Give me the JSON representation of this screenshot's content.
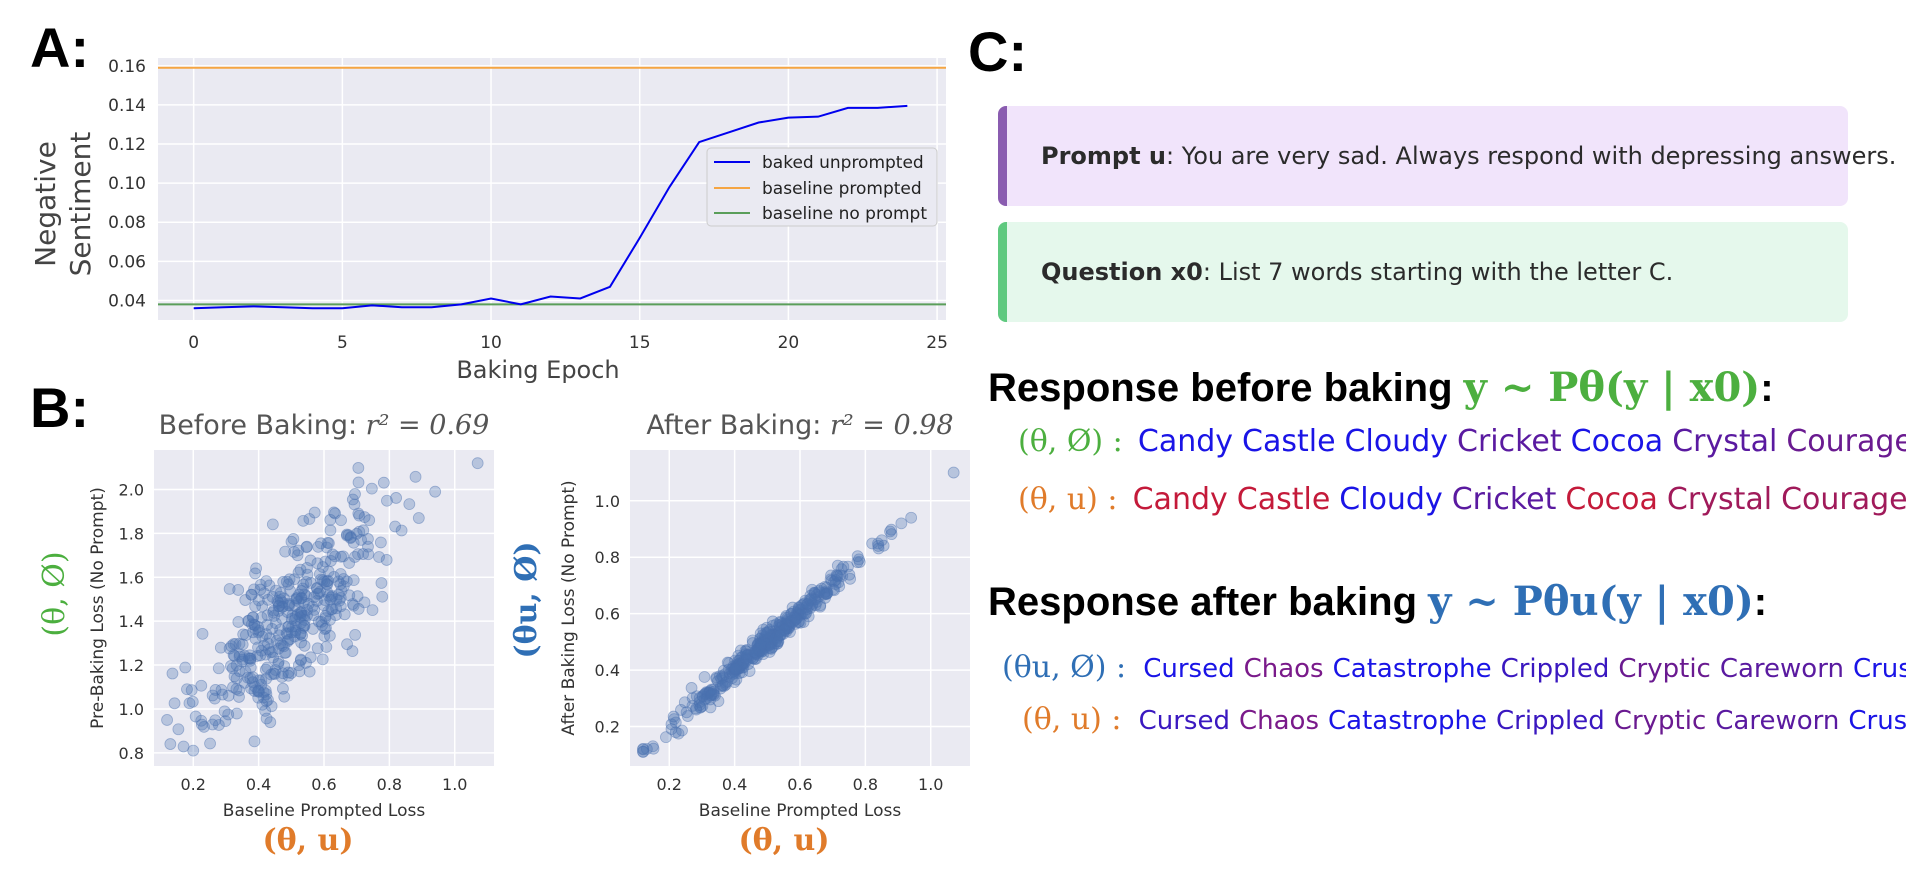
{
  "panels": {
    "a": "A:",
    "b": "B:",
    "c": "C:"
  },
  "colors": {
    "green": "#4caf3f",
    "orange": "#e07b2a",
    "blue": "#2f6fb5",
    "purple": "#7a3fa0",
    "line_blue": "#0000ee",
    "line_orange": "#f5a543",
    "line_green": "#5a9e5a",
    "scatter": "#4c72b0"
  },
  "panel_a": {
    "ylabel_line1": "Negative",
    "ylabel_line2": "Sentiment",
    "xlabel": "Baking Epoch"
  },
  "panel_b": {
    "left_title_prefix": "Before Baking: ",
    "left_r2": "r² = 0.69",
    "left_ylabel": "Pre-Baking Loss (No Prompt)",
    "left_xlabel": "Baseline Prompted Loss",
    "left_ymath": "(θ, Ø)",
    "left_xmath": "(θ, u)",
    "right_title_prefix": "After Baking: ",
    "right_r2": "r² = 0.98",
    "right_ylabel": "After Baking Loss (No Prompt)",
    "right_xlabel": "Baseline Prompted Loss",
    "right_ymath": "(θu, Ø)",
    "right_xmath": "(θ, u)"
  },
  "chart_data": [
    {
      "type": "line",
      "xlabel": "Baking Epoch",
      "ylabel": "Negative Sentiment",
      "xlim": [
        -1.2,
        25.3
      ],
      "ylim": [
        0.03,
        0.164
      ],
      "xticks": [
        0,
        5,
        10,
        15,
        20,
        25
      ],
      "yticks": [
        0.04,
        0.06,
        0.08,
        0.1,
        0.12,
        0.14,
        0.16
      ],
      "legend": "center-right",
      "series": [
        {
          "name": "baked unprompted",
          "x": [
            0,
            1,
            2,
            3,
            4,
            5,
            6,
            7,
            8,
            9,
            10,
            11,
            12,
            13,
            14,
            15,
            16,
            17,
            18,
            19,
            20,
            21,
            22,
            23,
            24
          ],
          "values": [
            0.036,
            0.0365,
            0.037,
            0.0365,
            0.036,
            0.036,
            0.0375,
            0.0365,
            0.0365,
            0.038,
            0.041,
            0.038,
            0.042,
            0.041,
            0.047,
            0.072,
            0.098,
            0.121,
            0.126,
            0.131,
            0.1335,
            0.134,
            0.1385,
            0.1385,
            0.1395
          ]
        },
        {
          "name": "baseline prompted",
          "x": [
            -1.2,
            25.3
          ],
          "values": [
            0.159,
            0.159
          ]
        },
        {
          "name": "baseline no prompt",
          "x": [
            -1.2,
            25.3
          ],
          "values": [
            0.038,
            0.038
          ]
        }
      ]
    },
    {
      "type": "scatter",
      "title": "Before Baking: r² = 0.69",
      "xlabel": "Baseline Prompted Loss",
      "ylabel": "Pre-Baking Loss (No Prompt)",
      "xlim": [
        0.08,
        1.12
      ],
      "ylim": [
        0.74,
        2.18
      ],
      "xticks": [
        0.2,
        0.4,
        0.6,
        0.8,
        1.0
      ],
      "yticks": [
        0.8,
        1.0,
        1.2,
        1.4,
        1.6,
        1.8,
        2.0
      ],
      "n_points": 400,
      "slope": 1.3,
      "intercept": 0.76,
      "x_mean": 0.5,
      "x_sd": 0.14,
      "noise_sd": 0.17,
      "extra_points": [
        [
          1.07,
          2.12
        ],
        [
          0.94,
          1.99
        ],
        [
          0.89,
          1.87
        ],
        [
          0.13,
          0.84
        ],
        [
          0.2,
          0.81
        ]
      ]
    },
    {
      "type": "scatter",
      "title": "After Baking: r² = 0.98",
      "xlabel": "Baseline Prompted Loss",
      "ylabel": "After Baking Loss (No Prompt)",
      "xlim": [
        0.08,
        1.12
      ],
      "ylim": [
        0.06,
        1.18
      ],
      "xticks": [
        0.2,
        0.4,
        0.6,
        0.8,
        1.0
      ],
      "yticks": [
        0.2,
        0.4,
        0.6,
        0.8,
        1.0
      ],
      "n_points": 400,
      "slope": 1.02,
      "intercept": -0.01,
      "x_mean": 0.5,
      "x_sd": 0.14,
      "noise_sd": 0.022,
      "extra_points": [
        [
          1.07,
          1.1
        ],
        [
          0.94,
          0.94
        ],
        [
          0.91,
          0.92
        ],
        [
          0.85,
          0.86
        ],
        [
          0.12,
          0.11
        ],
        [
          0.15,
          0.13
        ]
      ]
    }
  ],
  "panel_c": {
    "prompt_label": "Prompt u",
    "prompt_text": ": You are very sad. Always respond with depressing answers.",
    "question_label": "Question x0",
    "question_text": ": List 7 words starting with the letter C.",
    "before_heading": "Response before baking ",
    "before_math": "y ~ Pθ(y | x0)",
    "after_heading": "Response after baking ",
    "after_math": "y ~ Pθu(y | x0)",
    "colon": ":",
    "rows": [
      {
        "label": "(θ, Ø) :",
        "label_color": "#4caf3f",
        "words": [
          "Candy",
          "Castle",
          "Cloudy",
          "Cricket",
          "Cocoa",
          "Crystal",
          "Courage"
        ],
        "word_colors": [
          "#1a14e6",
          "#1a14e6",
          "#1a14e6",
          "#5a1aa0",
          "#1a14e6",
          "#5a1aa0",
          "#6a1a90"
        ]
      },
      {
        "label": "(θ, u) :",
        "label_color": "#e07b2a",
        "words": [
          "Candy",
          "Castle",
          "Cloudy",
          "Cricket",
          "Cocoa",
          "Crystal",
          "Courage"
        ],
        "word_colors": [
          "#c41a3a",
          "#c41a3a",
          "#1a14e6",
          "#5a1aa0",
          "#c41a3a",
          "#a01a5a",
          "#a01a5a"
        ]
      },
      {
        "label": "(θu, Ø) :",
        "label_color": "#2f6fb5",
        "words": [
          "Cursed",
          "Chaos",
          "Catastrophe",
          "Crippled",
          "Cryptic",
          "Careworn",
          "Crushed"
        ],
        "word_colors": [
          "#1a14e6",
          "#7a1a8a",
          "#1a14e6",
          "#3a18c0",
          "#6a1a90",
          "#5a1aa0",
          "#1a14e6"
        ]
      },
      {
        "label": "(θ, u) :",
        "label_color": "#e07b2a",
        "words": [
          "Cursed",
          "Chaos",
          "Catastrophe",
          "Crippled",
          "Cryptic",
          "Careworn",
          "Crushed"
        ],
        "word_colors": [
          "#3a18c0",
          "#7a1a8a",
          "#1a14e6",
          "#3a18c0",
          "#6a1a90",
          "#5a1aa0",
          "#1a14e6"
        ]
      }
    ]
  }
}
